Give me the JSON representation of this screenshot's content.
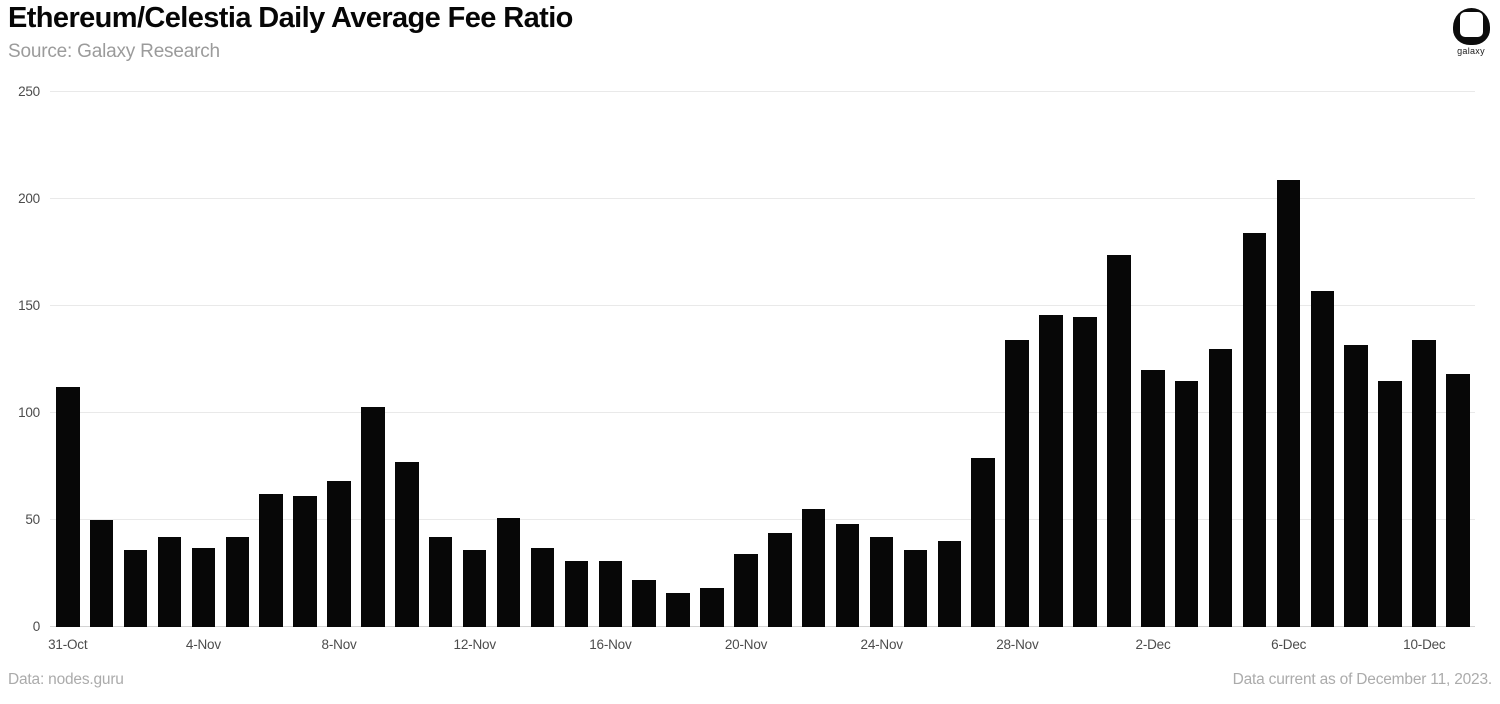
{
  "header": {
    "title": "Ethereum/Celestia Daily Average Fee Ratio",
    "source": "Source: Galaxy Research"
  },
  "logo": {
    "label": "galaxy"
  },
  "footer": {
    "left": "Data: nodes.guru",
    "right": "Data current as of December 11, 2023."
  },
  "colors": {
    "bar": "#070707",
    "gridline": "#e9e9e9",
    "baseline": "#d4d4d4",
    "axis_text": "#4c4c4c",
    "muted_text": "#ababab",
    "background": "#ffffff"
  },
  "chart_data": {
    "type": "bar",
    "title": "Ethereum/Celestia Daily Average Fee Ratio",
    "xlabel": "",
    "ylabel": "",
    "ylim": [
      0,
      250
    ],
    "ytick_step": 50,
    "xtick_every": 4,
    "grid": true,
    "legend_position": "none",
    "categories": [
      "31-Oct",
      "1-Nov",
      "2-Nov",
      "3-Nov",
      "4-Nov",
      "5-Nov",
      "6-Nov",
      "7-Nov",
      "8-Nov",
      "9-Nov",
      "10-Nov",
      "11-Nov",
      "12-Nov",
      "13-Nov",
      "14-Nov",
      "15-Nov",
      "16-Nov",
      "17-Nov",
      "18-Nov",
      "19-Nov",
      "20-Nov",
      "21-Nov",
      "22-Nov",
      "23-Nov",
      "24-Nov",
      "25-Nov",
      "26-Nov",
      "27-Nov",
      "28-Nov",
      "29-Nov",
      "30-Nov",
      "1-Dec",
      "2-Dec",
      "3-Dec",
      "4-Dec",
      "5-Dec",
      "6-Dec",
      "7-Dec",
      "8-Dec",
      "9-Dec",
      "10-Dec",
      "11-Dec"
    ],
    "values": [
      112,
      50,
      36,
      42,
      37,
      42,
      62,
      61,
      68,
      103,
      77,
      42,
      36,
      51,
      37,
      31,
      31,
      22,
      16,
      18,
      34,
      44,
      55,
      48,
      42,
      36,
      40,
      79,
      134,
      146,
      145,
      174,
      120,
      115,
      130,
      184,
      209,
      157,
      132,
      115,
      134,
      118
    ]
  }
}
